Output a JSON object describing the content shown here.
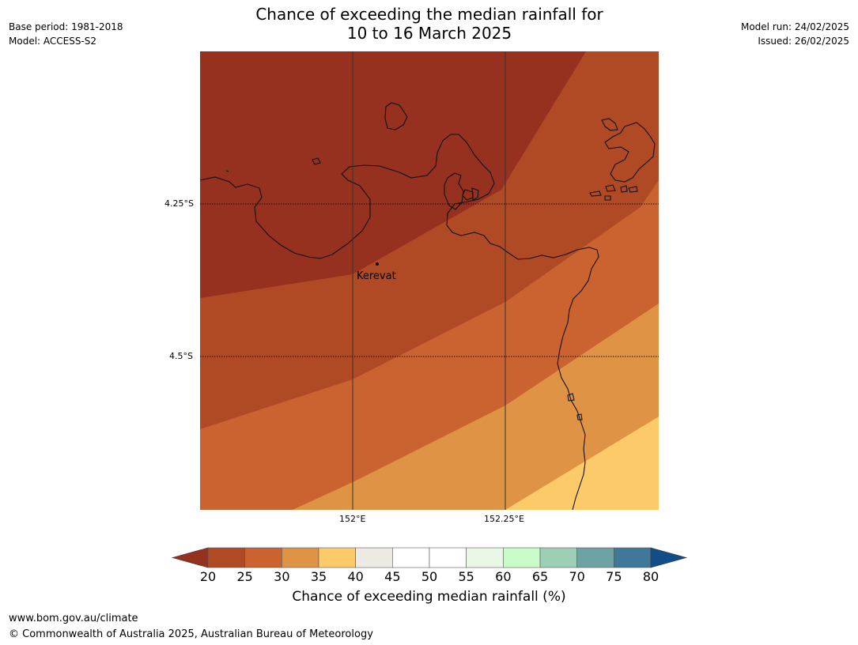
{
  "title": {
    "line1": "Chance of exceeding the median rainfall for",
    "line2": "10 to 16 March 2025"
  },
  "meta_left": {
    "base_period": "Base period: 1981-2018",
    "model": "Model: ACCESS-S2"
  },
  "meta_right": {
    "model_run": "Model run: 24/02/2025",
    "issued": "Issued: 26/02/2025"
  },
  "map": {
    "lat_labels": [
      "4.25°S",
      "4.5°S"
    ],
    "lon_labels": [
      "152°E",
      "152.25°E"
    ],
    "place": "Kerevat",
    "bands": [
      {
        "range": "<20",
        "color": "#96301f"
      },
      {
        "range": "20-25",
        "color": "#b04a25"
      },
      {
        "range": "25-30",
        "color": "#cb6331"
      },
      {
        "range": "30-35",
        "color": "#df9344"
      },
      {
        "range": "35-40",
        "color": "#fdca6a"
      }
    ]
  },
  "colorbar": {
    "title": "Chance of exceeding median rainfall (%)",
    "ticks": [
      "20",
      "25",
      "30",
      "35",
      "40",
      "45",
      "50",
      "55",
      "60",
      "65",
      "70",
      "75",
      "80"
    ],
    "under_color": "#96301f",
    "over_color": "#124d87",
    "colors": [
      "#b04a25",
      "#cb6331",
      "#df9344",
      "#fdca6a",
      "#edeae4",
      "#ffffff",
      "#ffffff",
      "#eaf6e6",
      "#c8fcc8",
      "#9ccfb6",
      "#6da3a3",
      "#3f7899"
    ]
  },
  "footer": {
    "url": "www.bom.gov.au/climate",
    "copyright": "© Commonwealth of Australia 2025, Australian Bureau of Meteorology"
  }
}
